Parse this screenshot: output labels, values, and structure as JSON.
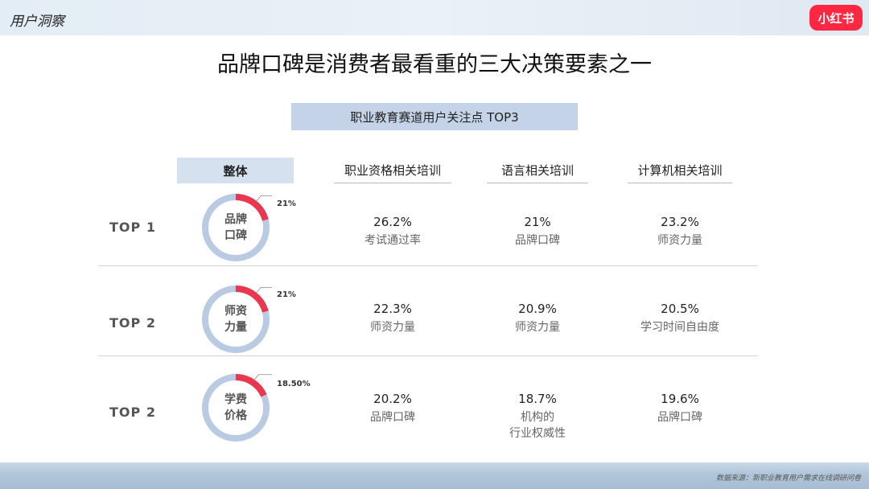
{
  "header": {
    "section_label": "用户洞察",
    "logo_text": "小红书"
  },
  "headline": "品牌口碑是消费者最看重的三大决策要素之一",
  "subtitle": "职业教育赛道用户关注点 TOP3",
  "columns": {
    "overall": "整体",
    "c1": "职业资格相关培训",
    "c2": "语言相关培训",
    "c3": "计算机相关培训"
  },
  "rows": [
    {
      "rank": "TOP 1",
      "overall_line1": "品牌",
      "overall_line2": "口碑",
      "overall_pct": "21%",
      "overall_value": 21,
      "c1": {
        "value": "26.2%",
        "label": "考试通过率"
      },
      "c2": {
        "value": "21%",
        "label": "品牌口碑"
      },
      "c3": {
        "value": "23.2%",
        "label": "师资力量"
      }
    },
    {
      "rank": "TOP 2",
      "overall_line1": "师资",
      "overall_line2": "力量",
      "overall_pct": "21%",
      "overall_value": 21,
      "c1": {
        "value": "22.3%",
        "label": "师资力量"
      },
      "c2": {
        "value": "20.9%",
        "label": "师资力量"
      },
      "c3": {
        "value": "20.5%",
        "label": "学习时间自由度"
      }
    },
    {
      "rank": "TOP 2",
      "overall_line1": "学费",
      "overall_line2": "价格",
      "overall_pct": "18.50%",
      "overall_value": 18.5,
      "c1": {
        "value": "20.2%",
        "label": "品牌口碑"
      },
      "c2": {
        "value": "18.7%",
        "label": "机构的",
        "label2": "行业权威性"
      },
      "c3": {
        "value": "19.6%",
        "label": "品牌口碑"
      }
    }
  ],
  "source_note": "数据来源：新职业教育用户需求在线调研问卷",
  "colors": {
    "accent": "#e8374f",
    "ring": "#b9cbe3",
    "header_fill": "#c4d3e8"
  }
}
